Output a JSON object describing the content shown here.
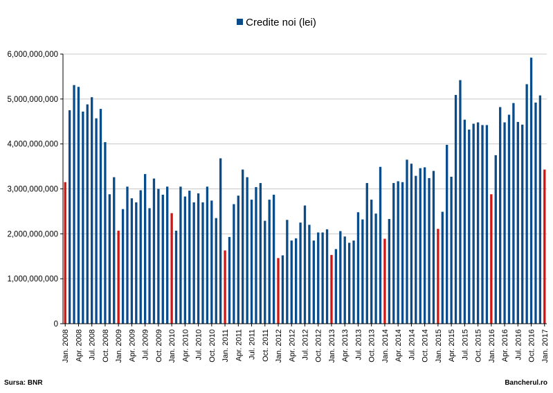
{
  "legend": {
    "label": "Credite noi (lei)"
  },
  "footer": {
    "source": "Sursa: BNR",
    "brand": "Bancherul.ro"
  },
  "colors": {
    "bar": "#0a4c8a",
    "january_bar": "#d01515",
    "grid": "#c8c8c8",
    "axis": "#000000"
  },
  "chart_data": {
    "type": "bar",
    "title": "",
    "xlabel": "",
    "ylabel": "",
    "ylim": [
      0,
      6000000000
    ],
    "yticks": [
      {
        "value": 0,
        "label": "0"
      },
      {
        "value": 1000000000,
        "label": "1,000,000,000"
      },
      {
        "value": 2000000000,
        "label": "2,000,000,000"
      },
      {
        "value": 3000000000,
        "label": "3,000,000,000"
      },
      {
        "value": 4000000000,
        "label": "4,000,000,000"
      },
      {
        "value": 5000000000,
        "label": "5,000,000,000"
      },
      {
        "value": 6000000000,
        "label": "6,000,000,000"
      }
    ],
    "grid": true,
    "legend_position": "top-center",
    "highlight": "January bars shown in red",
    "tick_labels": [
      "Jan. 2008",
      "Apr. 2008",
      "Jul. 2008",
      "Oct. 2008",
      "Jan. 2009",
      "Apr. 2009",
      "Jul. 2009",
      "Oct. 2009",
      "Jan. 2010",
      "Apr. 2010",
      "Jul. 2010",
      "Oct. 2010",
      "Jan. 2011",
      "Apr. 2011",
      "Jul. 2011",
      "Oct. 2011",
      "Jan. 2012",
      "Apr. 2012",
      "Jul. 2012",
      "Oct. 2012",
      "Jan. 2013",
      "Apr. 2013",
      "Jul. 2013",
      "Oct. 2013",
      "Jan. 2014",
      "Apr. 2014",
      "Jul. 2014",
      "Oct. 2014",
      "Jan. 2015",
      "Apr. 2015",
      "Jul. 2015",
      "Oct. 2015",
      "Jan. 2016",
      "Apr. 2016",
      "Jul. 2016",
      "Oct. 2016",
      "Jan. 2017"
    ],
    "series": [
      {
        "name": "Credite noi (lei)",
        "values": [
          3150000000,
          4750000000,
          5310000000,
          5270000000,
          4720000000,
          4880000000,
          5040000000,
          4570000000,
          4780000000,
          4040000000,
          2880000000,
          3260000000,
          2070000000,
          2550000000,
          3050000000,
          2790000000,
          2700000000,
          2970000000,
          3330000000,
          2570000000,
          3230000000,
          3000000000,
          2870000000,
          3050000000,
          2460000000,
          2070000000,
          3050000000,
          2830000000,
          2960000000,
          2700000000,
          2900000000,
          2700000000,
          3050000000,
          2740000000,
          2350000000,
          3680000000,
          1630000000,
          1930000000,
          2660000000,
          2850000000,
          3430000000,
          3260000000,
          2760000000,
          3040000000,
          3130000000,
          2290000000,
          2760000000,
          2870000000,
          1460000000,
          1520000000,
          2310000000,
          1850000000,
          1900000000,
          2250000000,
          2630000000,
          2200000000,
          1850000000,
          2030000000,
          2030000000,
          2100000000,
          1530000000,
          1660000000,
          2060000000,
          1940000000,
          1800000000,
          1850000000,
          2480000000,
          2320000000,
          3130000000,
          2760000000,
          2450000000,
          3490000000,
          1890000000,
          2330000000,
          3130000000,
          3170000000,
          3150000000,
          3650000000,
          3560000000,
          3290000000,
          3460000000,
          3480000000,
          3240000000,
          3400000000,
          2110000000,
          2490000000,
          3980000000,
          3270000000,
          5090000000,
          5420000000,
          4540000000,
          4320000000,
          4450000000,
          4480000000,
          4420000000,
          4420000000,
          2880000000,
          3750000000,
          4820000000,
          4480000000,
          4650000000,
          4910000000,
          4490000000,
          4430000000,
          5330000000,
          5920000000,
          4920000000,
          5080000000,
          3430000000
        ]
      }
    ]
  }
}
